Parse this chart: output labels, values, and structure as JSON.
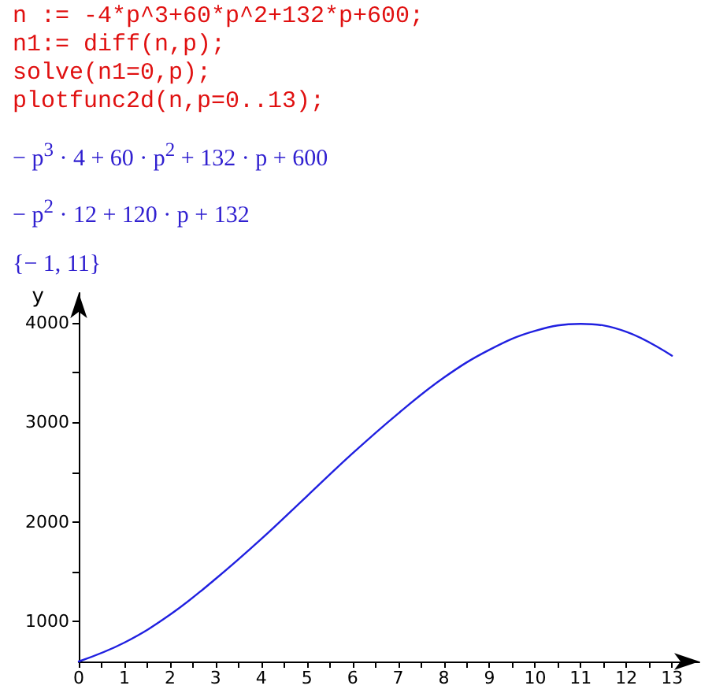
{
  "chart_data": {
    "type": "line",
    "ylabel": "y",
    "annotations": [
      "n := -4*p^3+60*p^2+132*p+600;",
      "n1:= diff(n,p);",
      "solve(n1=0,p);",
      "plotfunc2d(n,p=0..13);",
      "− p$^{3}$ · 4 + 60 · p$^{2}$ + 132 · p + 600",
      "− p$^{2}$ · 12 + 120 · p + 132",
      "{− 1, 11}"
    ],
    "x": [
      0,
      1,
      2,
      3,
      4,
      5,
      6,
      7,
      8,
      9,
      10,
      11,
      12,
      13
    ],
    "series": [
      {
        "color": "#2020e0",
        "values": [
          600,
          790,
          1070,
          1430,
          1830,
          2260,
          2690,
          3090,
          3450,
          3730,
          3920,
          3990,
          3910,
          3670
        ]
      }
    ],
    "xlim": [
      0,
      13.6
    ],
    "xticks": [
      0,
      {
        "value": 0.5,
        "label": null
      },
      1,
      {
        "value": 1.5,
        "label": null
      },
      2,
      {
        "value": 2.5,
        "label": null
      },
      3,
      {
        "value": 3.5,
        "label": null
      },
      4,
      {
        "value": 4.5,
        "label": null
      },
      5,
      {
        "value": 5.5,
        "label": null
      },
      6,
      {
        "value": 6.5,
        "label": null
      },
      7,
      {
        "value": 7.5,
        "label": null
      },
      8,
      {
        "value": 8.5,
        "label": null
      },
      9,
      {
        "value": 9.5,
        "label": null
      },
      10,
      {
        "value": 10.5,
        "label": null
      },
      11,
      {
        "value": 11.5,
        "label": null
      },
      12,
      {
        "value": 12.5,
        "label": null
      },
      13
    ],
    "ylim": [
      600,
      4300
    ],
    "yticks": [
      1000,
      {
        "value": 1500,
        "label": null
      },
      2000,
      {
        "value": 2500,
        "label": null
      },
      3000,
      {
        "value": 3500,
        "label": null
      },
      4000
    ],
    "grid": false,
    "marker": "none",
    "line_style": "solid"
  }
}
